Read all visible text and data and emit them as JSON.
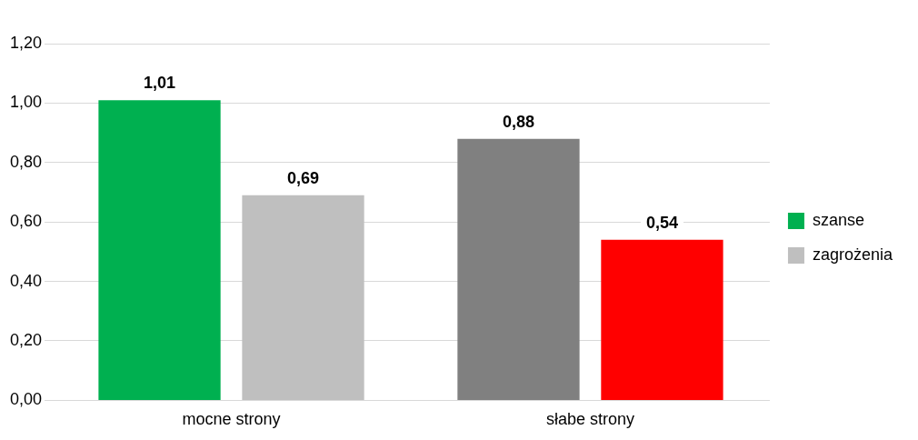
{
  "chart_data": {
    "type": "bar",
    "categories": [
      "mocne strony",
      "słabe strony"
    ],
    "series": [
      {
        "name": "szanse",
        "colors": [
          "#00b050",
          "#808080"
        ],
        "values": [
          1.01,
          0.88
        ],
        "value_labels": [
          "1,01",
          "0,88"
        ]
      },
      {
        "name": "zagrożenia",
        "colors": [
          "#bfbfbf",
          "#ff0000"
        ],
        "values": [
          0.69,
          0.54
        ],
        "value_labels": [
          "0,69",
          "0,54"
        ]
      }
    ],
    "ylim": [
      0,
      1.2
    ],
    "yticks": [
      {
        "value": 0,
        "label": "0,00"
      },
      {
        "value": 0.2,
        "label": "0,20"
      },
      {
        "value": 0.4,
        "label": "0,40"
      },
      {
        "value": 0.6,
        "label": "0,60"
      },
      {
        "value": 0.8,
        "label": "0,80"
      },
      {
        "value": 1,
        "label": "1,00"
      },
      {
        "value": 1.2,
        "label": "1,20"
      }
    ],
    "grid": "y",
    "legend": "right"
  }
}
